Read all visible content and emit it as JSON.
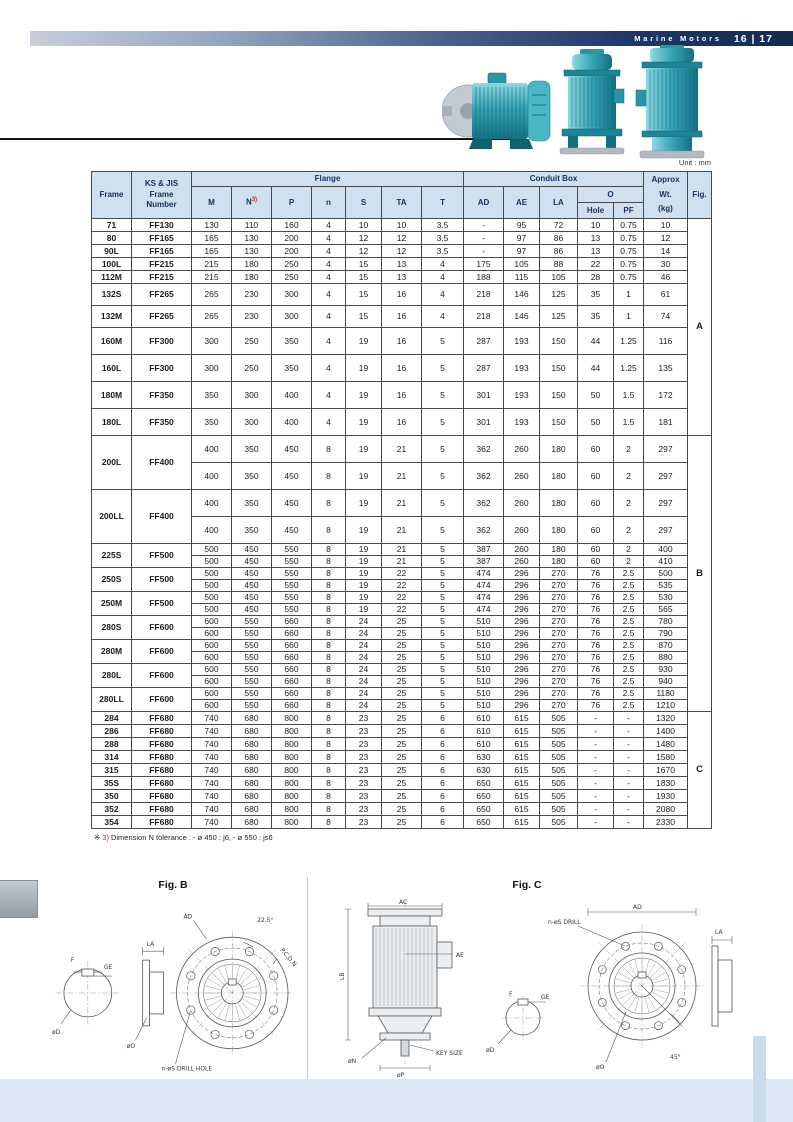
{
  "header": {
    "brand": "Marine Motors",
    "pages": "16 | 17"
  },
  "unit_label": "Unit : mm",
  "table": {
    "headers": {
      "frame": "Frame",
      "ks_jis_1": "KS & JIS",
      "ks_jis_2": "Frame",
      "ks_jis_3": "Number",
      "flange": "Flange",
      "conduit_box": "Conduit Box",
      "approx_1": "Approx",
      "approx_2": "Wt.",
      "approx_3": "(kg)",
      "fig": "Fig.",
      "m": "M",
      "n": "N",
      "n_sup": "3)",
      "p": "P",
      "n_lower": "n",
      "s": "S",
      "ta": "TA",
      "t": "T",
      "ad": "AD",
      "ae": "AE",
      "la": "LA",
      "o": "O",
      "hole": "Hole",
      "pf": "PF"
    },
    "groups": [
      {
        "fig": "A",
        "rows": [
          {
            "frame": "71",
            "ff": "FF130",
            "h": "c",
            "sub": [
              [
                "130",
                "110",
                "160",
                "4",
                "10",
                "10",
                "3.5",
                "-",
                "95",
                "72",
                "10",
                "0.75",
                "10"
              ]
            ]
          },
          {
            "frame": "80",
            "ff": "FF165",
            "h": "c",
            "sub": [
              [
                "165",
                "130",
                "200",
                "4",
                "12",
                "12",
                "3.5",
                "-",
                "97",
                "86",
                "13",
                "0.75",
                "12"
              ]
            ]
          },
          {
            "frame": "90L",
            "ff": "FF165",
            "h": "c",
            "sub": [
              [
                "165",
                "130",
                "200",
                "4",
                "12",
                "12",
                "3.5",
                "-",
                "97",
                "86",
                "13",
                "0.75",
                "14"
              ]
            ]
          },
          {
            "frame": "100L",
            "ff": "FF215",
            "h": "c",
            "sub": [
              [
                "215",
                "180",
                "250",
                "4",
                "15",
                "13",
                "4",
                "175",
                "105",
                "88",
                "22",
                "0.75",
                "30"
              ]
            ]
          },
          {
            "frame": "112M",
            "ff": "FF215",
            "h": "c",
            "sub": [
              [
                "215",
                "180",
                "250",
                "4",
                "15",
                "13",
                "4",
                "188",
                "115",
                "105",
                "28",
                "0.75",
                "46"
              ]
            ]
          },
          {
            "frame": "132S",
            "ff": "FF265",
            "h": "m",
            "sub": [
              [
                "265",
                "230",
                "300",
                "4",
                "15",
                "16",
                "4",
                "218",
                "146",
                "125",
                "35",
                "1",
                "61"
              ]
            ]
          },
          {
            "frame": "132M",
            "ff": "FF265",
            "h": "m",
            "sub": [
              [
                "265",
                "230",
                "300",
                "4",
                "15",
                "16",
                "4",
                "218",
                "146",
                "125",
                "35",
                "1",
                "74"
              ]
            ]
          },
          {
            "frame": "160M",
            "ff": "FF300",
            "h": "t",
            "sub": [
              [
                "300",
                "250",
                "350",
                "4",
                "19",
                "16",
                "5",
                "287",
                "193",
                "150",
                "44",
                "1.25",
                "116"
              ]
            ]
          },
          {
            "frame": "160L",
            "ff": "FF300",
            "h": "t",
            "sub": [
              [
                "300",
                "250",
                "350",
                "4",
                "19",
                "16",
                "5",
                "287",
                "193",
                "150",
                "44",
                "1.25",
                "135"
              ]
            ]
          },
          {
            "frame": "180M",
            "ff": "FF350",
            "h": "t",
            "sub": [
              [
                "350",
                "300",
                "400",
                "4",
                "19",
                "16",
                "5",
                "301",
                "193",
                "150",
                "50",
                "1.5",
                "172"
              ]
            ]
          },
          {
            "frame": "180L",
            "ff": "FF350",
            "h": "t",
            "sub": [
              [
                "350",
                "300",
                "400",
                "4",
                "19",
                "16",
                "5",
                "301",
                "193",
                "150",
                "50",
                "1.5",
                "181"
              ]
            ]
          }
        ]
      },
      {
        "fig": "B",
        "rows": [
          {
            "frame": "200L",
            "ff": "FF400",
            "h": "t",
            "sub": [
              [
                "400",
                "350",
                "450",
                "8",
                "19",
                "21",
                "5",
                "362",
                "260",
                "180",
                "60",
                "2",
                "297"
              ],
              [
                "400",
                "350",
                "450",
                "8",
                "19",
                "21",
                "5",
                "362",
                "260",
                "180",
                "60",
                "2",
                "297"
              ]
            ]
          },
          {
            "frame": "200LL",
            "ff": "FF400",
            "h": "t",
            "sub": [
              [
                "400",
                "350",
                "450",
                "8",
                "19",
                "21",
                "5",
                "362",
                "260",
                "180",
                "60",
                "2",
                "297"
              ],
              [
                "400",
                "350",
                "450",
                "8",
                "19",
                "21",
                "5",
                "362",
                "260",
                "180",
                "60",
                "2",
                "297"
              ]
            ]
          },
          {
            "frame": "225S",
            "ff": "FF500",
            "h": "s",
            "sub": [
              [
                "500",
                "450",
                "550",
                "8",
                "19",
                "21",
                "5",
                "387",
                "260",
                "180",
                "60",
                "2",
                "400"
              ],
              [
                "500",
                "450",
                "550",
                "8",
                "19",
                "21",
                "5",
                "387",
                "260",
                "180",
                "60",
                "2",
                "410"
              ]
            ]
          },
          {
            "frame": "250S",
            "ff": "FF500",
            "h": "s",
            "sub": [
              [
                "500",
                "450",
                "550",
                "8",
                "19",
                "22",
                "5",
                "474",
                "296",
                "270",
                "76",
                "2.5",
                "500"
              ],
              [
                "500",
                "450",
                "550",
                "8",
                "19",
                "22",
                "5",
                "474",
                "296",
                "270",
                "76",
                "2.5",
                "535"
              ]
            ]
          },
          {
            "frame": "250M",
            "ff": "FF500",
            "h": "s",
            "sub": [
              [
                "500",
                "450",
                "550",
                "8",
                "19",
                "22",
                "5",
                "474",
                "296",
                "270",
                "76",
                "2.5",
                "530"
              ],
              [
                "500",
                "450",
                "550",
                "8",
                "19",
                "22",
                "5",
                "474",
                "296",
                "270",
                "76",
                "2.5",
                "565"
              ]
            ]
          },
          {
            "frame": "280S",
            "ff": "FF600",
            "h": "s",
            "sub": [
              [
                "600",
                "550",
                "660",
                "8",
                "24",
                "25",
                "5",
                "510",
                "296",
                "270",
                "76",
                "2.5",
                "780"
              ],
              [
                "600",
                "550",
                "660",
                "8",
                "24",
                "25",
                "5",
                "510",
                "296",
                "270",
                "76",
                "2.5",
                "790"
              ]
            ]
          },
          {
            "frame": "280M",
            "ff": "FF600",
            "h": "s",
            "sub": [
              [
                "600",
                "550",
                "660",
                "8",
                "24",
                "25",
                "5",
                "510",
                "296",
                "270",
                "76",
                "2.5",
                "870"
              ],
              [
                "600",
                "550",
                "660",
                "8",
                "24",
                "25",
                "5",
                "510",
                "296",
                "270",
                "76",
                "2.5",
                "880"
              ]
            ]
          },
          {
            "frame": "280L",
            "ff": "FF600",
            "h": "s",
            "sub": [
              [
                "600",
                "550",
                "660",
                "8",
                "24",
                "25",
                "5",
                "510",
                "296",
                "270",
                "76",
                "2.5",
                "930"
              ],
              [
                "600",
                "550",
                "660",
                "8",
                "24",
                "25",
                "5",
                "510",
                "296",
                "270",
                "76",
                "2.5",
                "940"
              ]
            ]
          },
          {
            "frame": "280LL",
            "ff": "FF600",
            "h": "s",
            "sub": [
              [
                "600",
                "550",
                "660",
                "8",
                "24",
                "25",
                "5",
                "510",
                "296",
                "270",
                "76",
                "2.5",
                "1180"
              ],
              [
                "600",
                "550",
                "660",
                "8",
                "24",
                "25",
                "5",
                "510",
                "296",
                "270",
                "76",
                "2.5",
                "1210"
              ]
            ]
          }
        ]
      },
      {
        "fig": "C",
        "rows": [
          {
            "frame": "284",
            "ff": "FF680",
            "h": "c",
            "sub": [
              [
                "740",
                "680",
                "800",
                "8",
                "23",
                "25",
                "6",
                "610",
                "615",
                "505",
                "-",
                "-",
                "1320"
              ]
            ]
          },
          {
            "frame": "286",
            "ff": "FF680",
            "h": "c",
            "sub": [
              [
                "740",
                "680",
                "800",
                "8",
                "23",
                "25",
                "6",
                "610",
                "615",
                "505",
                "-",
                "-",
                "1400"
              ]
            ]
          },
          {
            "frame": "288",
            "ff": "FF680",
            "h": "c",
            "sub": [
              [
                "740",
                "680",
                "800",
                "8",
                "23",
                "25",
                "6",
                "610",
                "615",
                "505",
                "-",
                "-",
                "1480"
              ]
            ]
          },
          {
            "frame": "314",
            "ff": "FF680",
            "h": "c",
            "sub": [
              [
                "740",
                "680",
                "800",
                "8",
                "23",
                "25",
                "6",
                "630",
                "615",
                "505",
                "-",
                "-",
                "1580"
              ]
            ]
          },
          {
            "frame": "315",
            "ff": "FF680",
            "h": "c",
            "sub": [
              [
                "740",
                "680",
                "800",
                "8",
                "23",
                "25",
                "6",
                "630",
                "615",
                "505",
                "-",
                "-",
                "1670"
              ]
            ]
          },
          {
            "frame": "35S",
            "ff": "FF680",
            "h": "c",
            "sub": [
              [
                "740",
                "680",
                "800",
                "8",
                "23",
                "25",
                "6",
                "650",
                "615",
                "505",
                "-",
                "-",
                "1830"
              ]
            ]
          },
          {
            "frame": "350",
            "ff": "FF680",
            "h": "c",
            "sub": [
              [
                "740",
                "680",
                "800",
                "8",
                "23",
                "25",
                "6",
                "650",
                "615",
                "505",
                "-",
                "-",
                "1930"
              ]
            ]
          },
          {
            "frame": "352",
            "ff": "FF680",
            "h": "c",
            "sub": [
              [
                "740",
                "680",
                "800",
                "8",
                "23",
                "25",
                "6",
                "650",
                "615",
                "505",
                "-",
                "-",
                "2080"
              ]
            ]
          },
          {
            "frame": "354",
            "ff": "FF680",
            "h": "c",
            "sub": [
              [
                "740",
                "680",
                "800",
                "8",
                "23",
                "25",
                "6",
                "650",
                "615",
                "505",
                "-",
                "-",
                "2330"
              ]
            ]
          }
        ]
      }
    ]
  },
  "footnote": {
    "marker": "※",
    "ref": "3)",
    "text": "Dimension N tolerance : - ø 450 : j6, - ø 550 : js6"
  },
  "figures": {
    "figB": {
      "title": "Fig. B",
      "labels": {
        "f": "F",
        "ge": "GE",
        "phiD": "øD",
        "la": "LA",
        "phiO": "øO",
        "ad": "AD",
        "angle": "22.5°",
        "pcd": "P.C.D.N",
        "drill": "n-øS DRILL HOLE"
      }
    },
    "figC": {
      "title": "Fig. C",
      "labels": {
        "ac": "AC",
        "lb": "LB",
        "ae": "AE",
        "f": "F",
        "ge": "GE",
        "phiD": "øD",
        "key": "KEY SIZE",
        "phiN": "øN",
        "phiP": "øP",
        "ad": "AD",
        "drill": "n-øS DRILL",
        "la": "LA",
        "angle": "45°",
        "phiO": "øO"
      }
    }
  }
}
